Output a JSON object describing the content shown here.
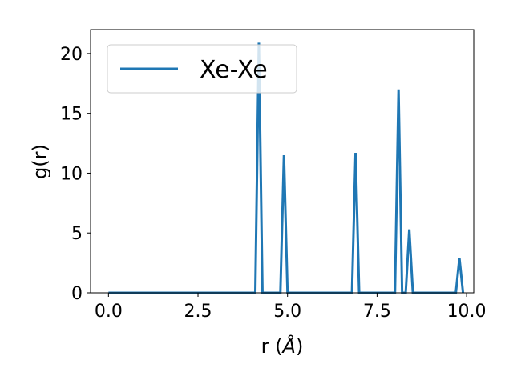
{
  "chart_data": {
    "type": "line",
    "title": "",
    "xlabel_prefix": "r (",
    "xlabel_symbol": "Å",
    "xlabel_suffix": ")",
    "ylabel": "g(r)",
    "xlim": [
      -0.5,
      10.2
    ],
    "ylim": [
      0,
      22
    ],
    "xticks": [
      0.0,
      2.5,
      5.0,
      7.5,
      10.0
    ],
    "xtick_labels": [
      "0.0",
      "2.5",
      "5.0",
      "7.5",
      "10.0"
    ],
    "yticks": [
      0,
      5,
      10,
      15,
      20
    ],
    "ytick_labels": [
      "0",
      "5",
      "10",
      "15",
      "20"
    ],
    "grid": false,
    "legend_position": "top-left",
    "series": [
      {
        "name": "Xe-Xe",
        "color": "#1f77b4",
        "x": [
          0.0,
          4.1,
          4.2,
          4.3,
          4.8,
          4.9,
          5.0,
          6.8,
          6.9,
          7.0,
          8.0,
          8.1,
          8.2,
          8.3,
          8.4,
          8.5,
          9.7,
          9.8,
          9.9
        ],
        "y": [
          0,
          0,
          20.9,
          0,
          0,
          11.5,
          0,
          0,
          11.7,
          0,
          0,
          17.0,
          0,
          0,
          5.3,
          0,
          0,
          2.9,
          0
        ]
      }
    ]
  }
}
